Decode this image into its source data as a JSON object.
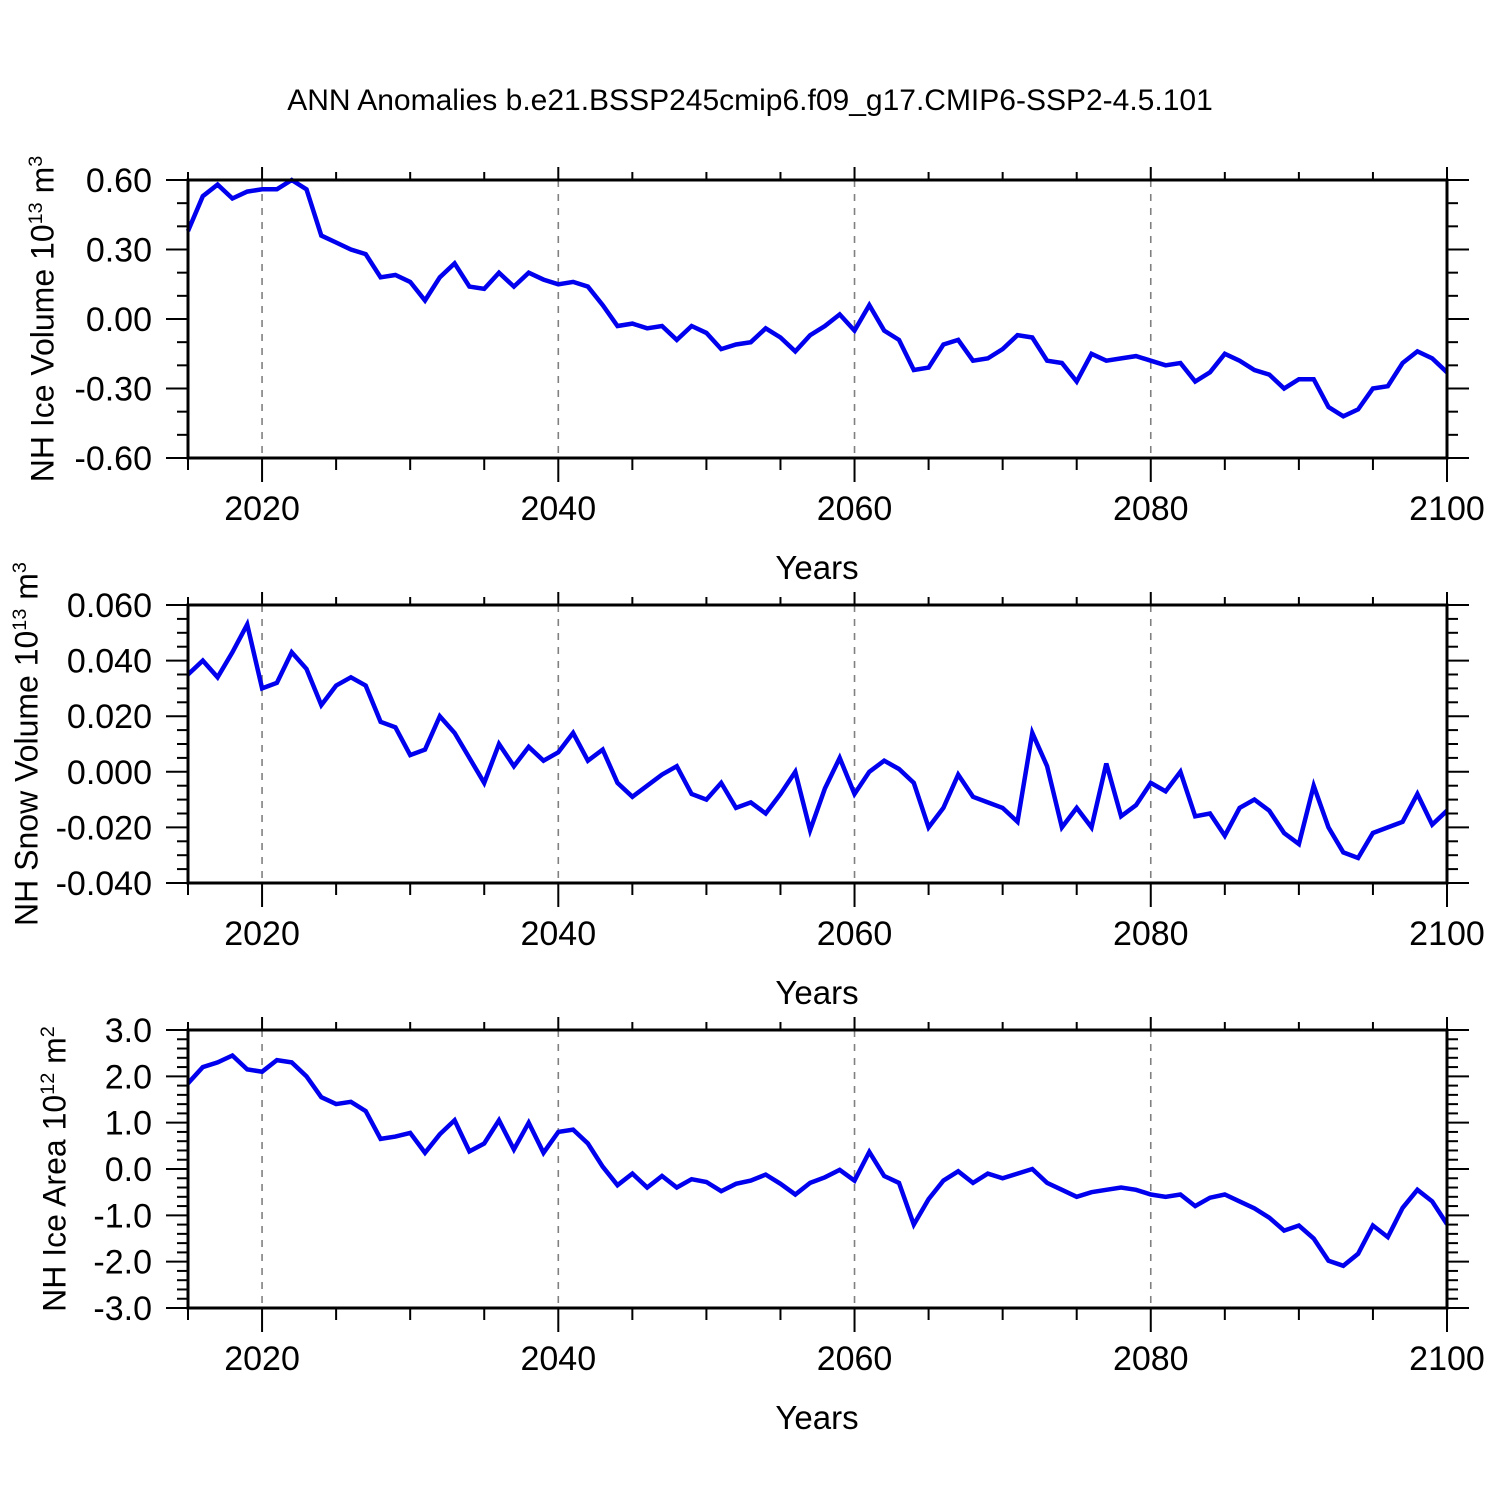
{
  "title": "ANN Anomalies b.e21.BSSP245cmip6.f09_g17.CMIP6-SSP2-4.5.101",
  "line_color": "#0000EE",
  "grid_color": "#808080",
  "axis_color": "#000000",
  "x_axis": {
    "label": "Years",
    "start": 2015,
    "end": 2100,
    "major_ticks": [
      2020,
      2040,
      2060,
      2080,
      2100
    ],
    "minor_step": 5,
    "gridline_years": [
      2020,
      2040,
      2060,
      2080
    ]
  },
  "chart_data": [
    {
      "type": "line",
      "name": "nh-ice-volume",
      "ylabel_parts": {
        "base": "NH Ice Volume 10",
        "exp1": "13",
        "mid": " m",
        "exp2": "3"
      },
      "xlabel": "Years",
      "ylim": [
        -0.6,
        0.6
      ],
      "ytick_major": [
        0.6,
        0.3,
        0.0,
        -0.3,
        -0.6
      ],
      "ytick_minor_step": 0.1,
      "ytick_decimals": 2,
      "x_start": 2015,
      "x_end": 2100,
      "values": [
        0.38,
        0.53,
        0.58,
        0.52,
        0.55,
        0.56,
        0.56,
        0.6,
        0.56,
        0.36,
        0.33,
        0.3,
        0.28,
        0.18,
        0.19,
        0.16,
        0.08,
        0.18,
        0.24,
        0.14,
        0.13,
        0.2,
        0.14,
        0.2,
        0.17,
        0.15,
        0.16,
        0.14,
        0.06,
        -0.03,
        -0.02,
        -0.04,
        -0.03,
        -0.09,
        -0.03,
        -0.06,
        -0.13,
        -0.11,
        -0.1,
        -0.04,
        -0.08,
        -0.14,
        -0.07,
        -0.03,
        0.02,
        -0.05,
        0.06,
        -0.05,
        -0.09,
        -0.22,
        -0.21,
        -0.11,
        -0.09,
        -0.18,
        -0.17,
        -0.13,
        -0.07,
        -0.08,
        -0.18,
        -0.19,
        -0.27,
        -0.15,
        -0.18,
        -0.17,
        -0.16,
        -0.18,
        -0.2,
        -0.19,
        -0.27,
        -0.23,
        -0.15,
        -0.18,
        -0.22,
        -0.24,
        -0.3,
        -0.26,
        -0.26,
        -0.38,
        -0.42,
        -0.39,
        -0.3,
        -0.29,
        -0.19,
        -0.14,
        -0.17,
        -0.23
      ]
    },
    {
      "type": "line",
      "name": "nh-snow-volume",
      "ylabel_parts": {
        "base": "NH Snow Volume 10",
        "exp1": "13",
        "mid": " m",
        "exp2": "3"
      },
      "xlabel": "Years",
      "ylim": [
        -0.04,
        0.06
      ],
      "ytick_major": [
        0.06,
        0.04,
        0.02,
        0.0,
        -0.02,
        -0.04
      ],
      "ytick_minor_step": 0.005,
      "ytick_decimals": 3,
      "x_start": 2015,
      "x_end": 2100,
      "values": [
        0.035,
        0.04,
        0.034,
        0.043,
        0.053,
        0.03,
        0.032,
        0.043,
        0.037,
        0.024,
        0.031,
        0.034,
        0.031,
        0.018,
        0.016,
        0.006,
        0.008,
        0.02,
        0.014,
        0.005,
        -0.004,
        0.01,
        0.002,
        0.009,
        0.004,
        0.007,
        0.014,
        0.004,
        0.008,
        -0.004,
        -0.009,
        -0.005,
        -0.001,
        0.002,
        -0.008,
        -0.01,
        -0.004,
        -0.013,
        -0.011,
        -0.015,
        -0.008,
        0.0,
        -0.021,
        -0.006,
        0.005,
        -0.008,
        0.0,
        0.004,
        0.001,
        -0.004,
        -0.02,
        -0.013,
        -0.001,
        -0.009,
        -0.011,
        -0.013,
        -0.018,
        0.014,
        0.002,
        -0.02,
        -0.013,
        -0.02,
        0.003,
        -0.016,
        -0.012,
        -0.004,
        -0.007,
        0.0,
        -0.016,
        -0.015,
        -0.023,
        -0.013,
        -0.01,
        -0.014,
        -0.022,
        -0.026,
        -0.005,
        -0.02,
        -0.029,
        -0.031,
        -0.022,
        -0.02,
        -0.018,
        -0.008,
        -0.019,
        -0.014
      ]
    },
    {
      "type": "line",
      "name": "nh-ice-area",
      "ylabel_parts": {
        "base": "NH Ice Area 10",
        "exp1": "12",
        "mid": " m",
        "exp2": "2"
      },
      "xlabel": "Years",
      "ylim": [
        -3.0,
        3.0
      ],
      "ytick_major": [
        3.0,
        2.0,
        1.0,
        0.0,
        -1.0,
        -2.0,
        -3.0
      ],
      "ytick_minor_step": 0.2,
      "ytick_decimals": 1,
      "x_start": 2015,
      "x_end": 2100,
      "values": [
        1.85,
        2.2,
        2.3,
        2.45,
        2.15,
        2.1,
        2.35,
        2.3,
        2.0,
        1.55,
        1.4,
        1.45,
        1.25,
        0.65,
        0.7,
        0.78,
        0.35,
        0.75,
        1.05,
        0.38,
        0.55,
        1.05,
        0.42,
        1.0,
        0.35,
        0.8,
        0.85,
        0.55,
        0.05,
        -0.35,
        -0.1,
        -0.4,
        -0.15,
        -0.4,
        -0.22,
        -0.28,
        -0.48,
        -0.32,
        -0.25,
        -0.12,
        -0.32,
        -0.55,
        -0.3,
        -0.18,
        -0.02,
        -0.25,
        0.37,
        -0.15,
        -0.3,
        -1.2,
        -0.65,
        -0.25,
        -0.05,
        -0.3,
        -0.1,
        -0.2,
        -0.1,
        0.0,
        -0.3,
        -0.45,
        -0.6,
        -0.5,
        -0.45,
        -0.4,
        -0.45,
        -0.55,
        -0.6,
        -0.55,
        -0.8,
        -0.62,
        -0.55,
        -0.7,
        -0.85,
        -1.05,
        -1.33,
        -1.22,
        -1.5,
        -1.98,
        -2.09,
        -1.83,
        -1.22,
        -1.47,
        -0.84,
        -0.45,
        -0.7,
        -1.19
      ]
    }
  ]
}
